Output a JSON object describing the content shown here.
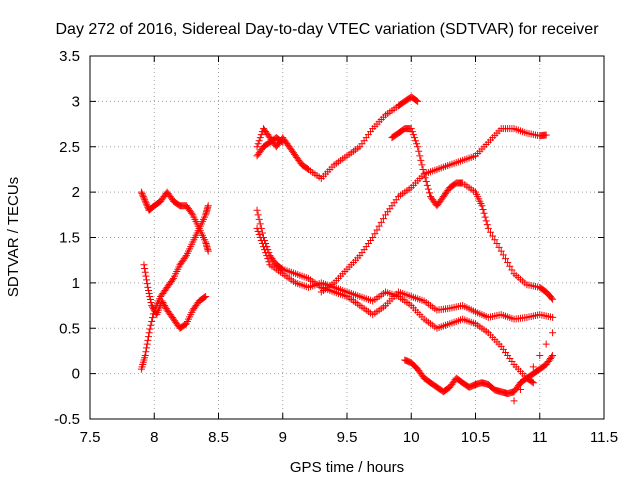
{
  "chart_data": {
    "type": "scatter",
    "title": "Day 272 of 2016, Sidereal Day-to-day VTEC variation (SDTVAR) for receiver",
    "xlabel": "GPS time / hours",
    "ylabel": "SDTVAR / TECUs",
    "xlim": [
      7.5,
      11.5
    ],
    "ylim": [
      -0.5,
      3.5
    ],
    "xticks": [
      "7.5",
      "8",
      "8.5",
      "9",
      "9.5",
      "10",
      "10.5",
      "11",
      "11.5"
    ],
    "yticks": [
      "-0.5",
      "0",
      "0.5",
      "1",
      "1.5",
      "2",
      "2.5",
      "3",
      "3.5"
    ],
    "grid": true,
    "legend": "none",
    "marker": "+",
    "color": "#ff0000",
    "tracks": [
      [
        [
          7.9,
          2.0
        ],
        [
          7.93,
          1.9
        ],
        [
          7.96,
          1.8
        ],
        [
          8.0,
          1.85
        ],
        [
          8.05,
          1.9
        ],
        [
          8.1,
          2.0
        ],
        [
          8.15,
          1.9
        ],
        [
          8.2,
          1.85
        ],
        [
          8.25,
          1.85
        ],
        [
          8.3,
          1.75
        ],
        [
          8.35,
          1.6
        ],
        [
          8.4,
          1.45
        ],
        [
          8.42,
          1.35
        ]
      ],
      [
        [
          7.9,
          0.05
        ],
        [
          7.93,
          0.2
        ],
        [
          7.96,
          0.45
        ],
        [
          8.0,
          0.7
        ],
        [
          8.05,
          0.85
        ],
        [
          8.1,
          0.95
        ],
        [
          8.15,
          1.05
        ],
        [
          8.2,
          1.2
        ],
        [
          8.25,
          1.3
        ],
        [
          8.3,
          1.45
        ],
        [
          8.35,
          1.6
        ],
        [
          8.4,
          1.75
        ],
        [
          8.42,
          1.85
        ]
      ],
      [
        [
          7.92,
          1.2
        ],
        [
          7.95,
          0.95
        ],
        [
          7.98,
          0.75
        ],
        [
          8.02,
          0.65
        ],
        [
          8.06,
          0.8
        ],
        [
          8.1,
          0.7
        ],
        [
          8.15,
          0.6
        ],
        [
          8.2,
          0.5
        ],
        [
          8.25,
          0.55
        ],
        [
          8.3,
          0.7
        ],
        [
          8.35,
          0.8
        ],
        [
          8.4,
          0.85
        ]
      ],
      [
        [
          8.8,
          2.5
        ],
        [
          8.85,
          2.7
        ],
        [
          8.9,
          2.6
        ],
        [
          8.95,
          2.5
        ],
        [
          9.0,
          2.6
        ],
        [
          9.05,
          2.5
        ],
        [
          9.1,
          2.4
        ],
        [
          9.15,
          2.3
        ],
        [
          9.2,
          2.25
        ],
        [
          9.3,
          2.15
        ],
        [
          9.4,
          2.3
        ],
        [
          9.5,
          2.4
        ],
        [
          9.6,
          2.5
        ],
        [
          9.7,
          2.7
        ],
        [
          9.8,
          2.85
        ],
        [
          9.9,
          2.95
        ],
        [
          9.95,
          3.0
        ],
        [
          10.0,
          3.05
        ],
        [
          10.05,
          3.0
        ]
      ],
      [
        [
          8.8,
          2.4
        ],
        [
          8.85,
          2.5
        ],
        [
          8.9,
          2.55
        ],
        [
          8.95,
          2.6
        ],
        [
          9.0,
          2.55
        ]
      ],
      [
        [
          8.8,
          1.8
        ],
        [
          8.85,
          1.5
        ],
        [
          8.9,
          1.3
        ],
        [
          8.95,
          1.2
        ],
        [
          9.0,
          1.15
        ],
        [
          9.1,
          1.1
        ],
        [
          9.2,
          1.05
        ],
        [
          9.3,
          0.95
        ],
        [
          9.4,
          0.9
        ],
        [
          9.5,
          0.85
        ],
        [
          9.6,
          0.75
        ],
        [
          9.7,
          0.65
        ],
        [
          9.8,
          0.75
        ],
        [
          9.9,
          0.9
        ],
        [
          10.0,
          0.85
        ],
        [
          10.1,
          0.8
        ],
        [
          10.2,
          0.7
        ],
        [
          10.3,
          0.72
        ],
        [
          10.4,
          0.75
        ],
        [
          10.5,
          0.68
        ],
        [
          10.6,
          0.62
        ],
        [
          10.7,
          0.65
        ],
        [
          10.8,
          0.6
        ],
        [
          10.9,
          0.62
        ],
        [
          11.0,
          0.65
        ],
        [
          11.1,
          0.62
        ]
      ],
      [
        [
          8.8,
          1.6
        ],
        [
          8.85,
          1.4
        ],
        [
          8.9,
          1.2
        ],
        [
          9.0,
          1.1
        ],
        [
          9.1,
          1.0
        ],
        [
          9.2,
          0.95
        ],
        [
          9.3,
          1.0
        ],
        [
          9.4,
          0.95
        ],
        [
          9.5,
          0.9
        ],
        [
          9.6,
          0.85
        ],
        [
          9.7,
          0.8
        ],
        [
          9.8,
          0.9
        ],
        [
          9.9,
          0.85
        ],
        [
          10.0,
          0.75
        ],
        [
          10.1,
          0.6
        ],
        [
          10.2,
          0.5
        ],
        [
          10.3,
          0.55
        ],
        [
          10.4,
          0.6
        ],
        [
          10.5,
          0.55
        ],
        [
          10.6,
          0.45
        ],
        [
          10.7,
          0.3
        ],
        [
          10.8,
          0.1
        ],
        [
          10.9,
          -0.05
        ],
        [
          10.95,
          -0.1
        ]
      ],
      [
        [
          9.3,
          0.9
        ],
        [
          9.4,
          1.0
        ],
        [
          9.5,
          1.15
        ],
        [
          9.6,
          1.3
        ],
        [
          9.7,
          1.5
        ],
        [
          9.8,
          1.75
        ],
        [
          9.9,
          1.95
        ],
        [
          10.0,
          2.05
        ],
        [
          10.1,
          2.2
        ],
        [
          10.2,
          2.25
        ],
        [
          10.3,
          2.3
        ],
        [
          10.4,
          2.35
        ],
        [
          10.5,
          2.4
        ],
        [
          10.6,
          2.55
        ],
        [
          10.7,
          2.7
        ],
        [
          10.8,
          2.7
        ],
        [
          10.9,
          2.65
        ],
        [
          11.0,
          2.62
        ],
        [
          11.05,
          2.63
        ]
      ],
      [
        [
          9.85,
          2.6
        ],
        [
          9.9,
          2.65
        ],
        [
          9.95,
          2.7
        ],
        [
          10.0,
          2.7
        ],
        [
          10.05,
          2.5
        ],
        [
          10.1,
          2.2
        ],
        [
          10.15,
          1.95
        ],
        [
          10.2,
          1.85
        ],
        [
          10.25,
          1.95
        ],
        [
          10.3,
          2.05
        ],
        [
          10.35,
          2.1
        ],
        [
          10.4,
          2.1
        ],
        [
          10.5,
          2.0
        ],
        [
          10.55,
          1.85
        ],
        [
          10.6,
          1.6
        ],
        [
          10.7,
          1.35
        ],
        [
          10.8,
          1.1
        ],
        [
          10.9,
          0.98
        ],
        [
          11.0,
          0.95
        ],
        [
          11.05,
          0.9
        ],
        [
          11.1,
          0.82
        ]
      ],
      [
        [
          9.95,
          0.15
        ],
        [
          10.0,
          0.12
        ],
        [
          10.05,
          0.05
        ],
        [
          10.1,
          -0.05
        ],
        [
          10.15,
          -0.1
        ],
        [
          10.2,
          -0.15
        ],
        [
          10.25,
          -0.2
        ],
        [
          10.3,
          -0.15
        ],
        [
          10.35,
          -0.05
        ],
        [
          10.4,
          -0.1
        ],
        [
          10.45,
          -0.15
        ],
        [
          10.5,
          -0.12
        ],
        [
          10.55,
          -0.1
        ],
        [
          10.6,
          -0.12
        ],
        [
          10.65,
          -0.18
        ],
        [
          10.7,
          -0.2
        ],
        [
          10.75,
          -0.22
        ],
        [
          10.8,
          -0.2
        ],
        [
          10.85,
          -0.1
        ],
        [
          10.9,
          -0.05
        ],
        [
          10.95,
          0.0
        ],
        [
          11.0,
          0.05
        ],
        [
          11.05,
          0.1
        ],
        [
          11.1,
          0.2
        ]
      ],
      [
        [
          10.8,
          -0.3
        ],
        [
          11.1,
          0.45
        ]
      ]
    ]
  }
}
